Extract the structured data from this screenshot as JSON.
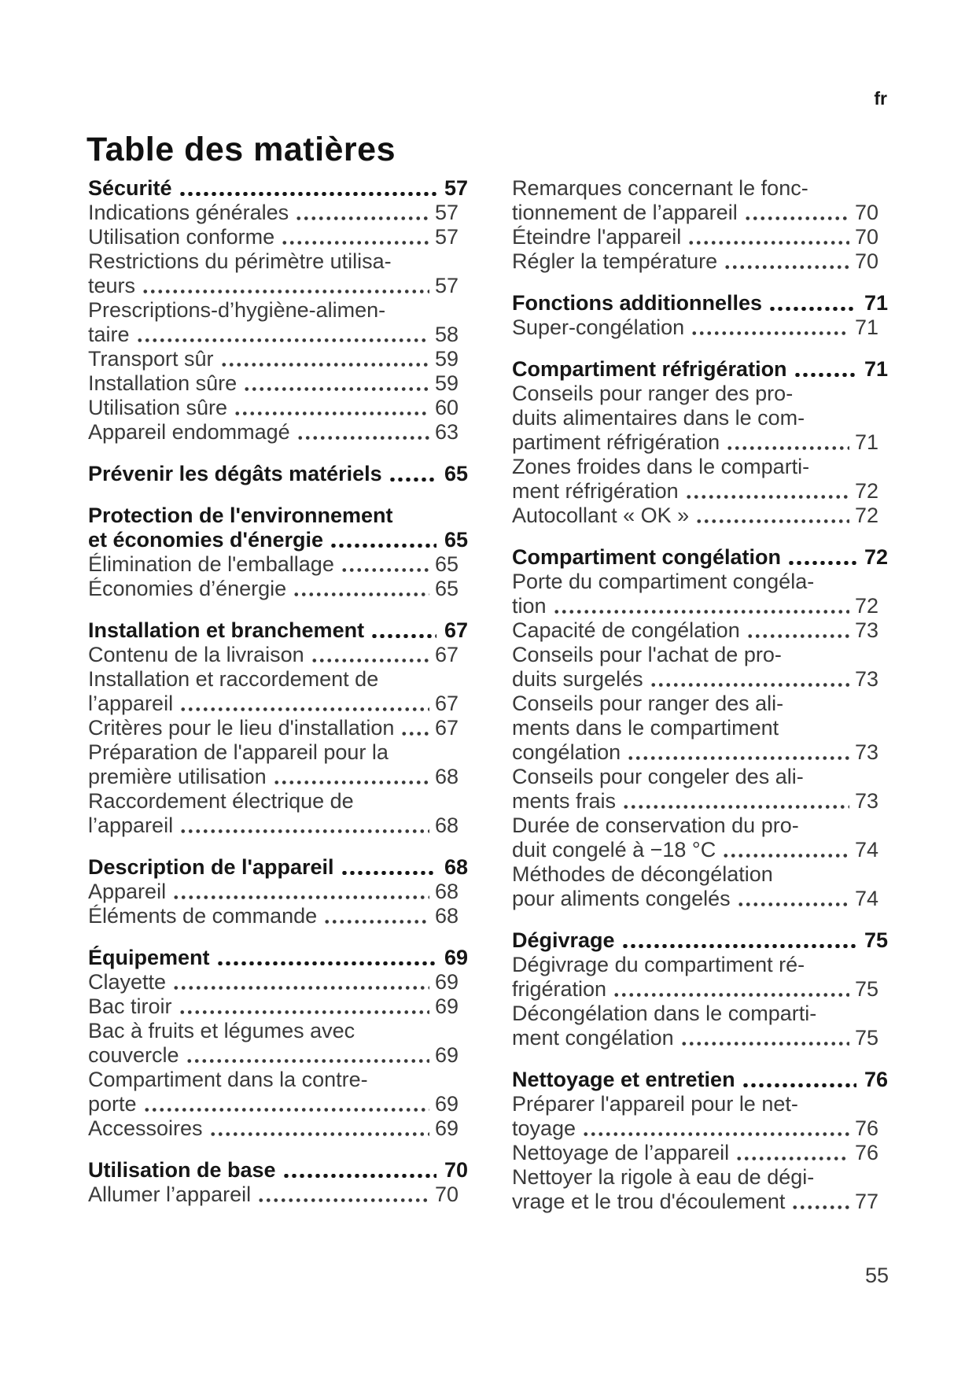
{
  "page": {
    "language_label": "fr",
    "title": "Table des matières",
    "page_number": "55"
  },
  "colors": {
    "background": "#ffffff",
    "body_text": "#3a3a3a",
    "heading_text": "#161616"
  },
  "toc": {
    "columns": [
      {
        "side": "left",
        "entries": [
          {
            "bold": true,
            "gap": false,
            "lines": [
              "Sécurité"
            ],
            "page": "57"
          },
          {
            "bold": false,
            "gap": false,
            "lines": [
              "Indications générales"
            ],
            "page": "57"
          },
          {
            "bold": false,
            "gap": false,
            "lines": [
              "Utilisation conforme"
            ],
            "page": "57"
          },
          {
            "bold": false,
            "gap": false,
            "lines": [
              "Restrictions du périmètre utilisa-",
              "teurs"
            ],
            "page": "57"
          },
          {
            "bold": false,
            "gap": false,
            "lines": [
              "Prescriptions-d’hygiène-alimen-",
              "taire"
            ],
            "page": "58"
          },
          {
            "bold": false,
            "gap": false,
            "lines": [
              "Transport sûr"
            ],
            "page": "59"
          },
          {
            "bold": false,
            "gap": false,
            "lines": [
              "Installation sûre"
            ],
            "page": "59"
          },
          {
            "bold": false,
            "gap": false,
            "lines": [
              "Utilisation sûre"
            ],
            "page": "60"
          },
          {
            "bold": false,
            "gap": false,
            "lines": [
              "Appareil endommagé"
            ],
            "page": "63"
          },
          {
            "bold": true,
            "gap": true,
            "lines": [
              "Prévenir les dégâts matériels"
            ],
            "page": "65"
          },
          {
            "bold": true,
            "gap": true,
            "lines": [
              "Protection de l'environnement",
              "et économies d'énergie"
            ],
            "page": "65"
          },
          {
            "bold": false,
            "gap": false,
            "lines": [
              "Élimination de l'emballage"
            ],
            "page": "65"
          },
          {
            "bold": false,
            "gap": false,
            "lines": [
              "Économies d’énergie"
            ],
            "page": "65"
          },
          {
            "bold": true,
            "gap": true,
            "lines": [
              "Installation et branchement"
            ],
            "page": "67"
          },
          {
            "bold": false,
            "gap": false,
            "lines": [
              "Contenu de la livraison"
            ],
            "page": "67"
          },
          {
            "bold": false,
            "gap": false,
            "lines": [
              "Installation et raccordement de",
              "l’appareil"
            ],
            "page": "67"
          },
          {
            "bold": false,
            "gap": false,
            "lines": [
              "Critères pour le lieu d'installation"
            ],
            "page": "67"
          },
          {
            "bold": false,
            "gap": false,
            "lines": [
              "Préparation de l'appareil pour la",
              "première utilisation"
            ],
            "page": "68"
          },
          {
            "bold": false,
            "gap": false,
            "lines": [
              "Raccordement électrique de",
              "l’appareil"
            ],
            "page": "68"
          },
          {
            "bold": true,
            "gap": true,
            "lines": [
              "Description de l'appareil"
            ],
            "page": "68"
          },
          {
            "bold": false,
            "gap": false,
            "lines": [
              "Appareil"
            ],
            "page": "68"
          },
          {
            "bold": false,
            "gap": false,
            "lines": [
              "Éléments de commande"
            ],
            "page": "68"
          },
          {
            "bold": true,
            "gap": true,
            "lines": [
              "Équipement"
            ],
            "page": "69"
          },
          {
            "bold": false,
            "gap": false,
            "lines": [
              "Clayette"
            ],
            "page": "69"
          },
          {
            "bold": false,
            "gap": false,
            "lines": [
              "Bac tiroir"
            ],
            "page": "69"
          },
          {
            "bold": false,
            "gap": false,
            "lines": [
              "Bac à fruits et légumes avec",
              "couvercle"
            ],
            "page": "69"
          },
          {
            "bold": false,
            "gap": false,
            "lines": [
              "Compartiment dans la contre-",
              "porte"
            ],
            "page": "69"
          },
          {
            "bold": false,
            "gap": false,
            "lines": [
              "Accessoires"
            ],
            "page": "69"
          },
          {
            "bold": true,
            "gap": true,
            "lines": [
              "Utilisation de base"
            ],
            "page": "70"
          },
          {
            "bold": false,
            "gap": false,
            "lines": [
              "Allumer l’appareil"
            ],
            "page": "70"
          }
        ]
      },
      {
        "side": "right",
        "entries": [
          {
            "bold": false,
            "gap": false,
            "lines": [
              "Remarques concernant le fonc-",
              "tionnement de l’appareil"
            ],
            "page": "70"
          },
          {
            "bold": false,
            "gap": false,
            "lines": [
              "Éteindre l'appareil"
            ],
            "page": "70"
          },
          {
            "bold": false,
            "gap": false,
            "lines": [
              "Régler la température"
            ],
            "page": "70"
          },
          {
            "bold": true,
            "gap": true,
            "lines": [
              "Fonctions additionnelles"
            ],
            "page": "71"
          },
          {
            "bold": false,
            "gap": false,
            "lines": [
              "Super-congélation"
            ],
            "page": "71"
          },
          {
            "bold": true,
            "gap": true,
            "lines": [
              "Compartiment réfrigération"
            ],
            "page": "71"
          },
          {
            "bold": false,
            "gap": false,
            "lines": [
              "Conseils pour ranger des pro-",
              "duits alimentaires dans le com-",
              "partiment réfrigération"
            ],
            "page": "71"
          },
          {
            "bold": false,
            "gap": false,
            "lines": [
              "Zones froides dans le comparti-",
              "ment réfrigération"
            ],
            "page": "72"
          },
          {
            "bold": false,
            "gap": false,
            "lines": [
              "Autocollant « OK »"
            ],
            "page": "72"
          },
          {
            "bold": true,
            "gap": true,
            "lines": [
              "Compartiment congélation"
            ],
            "page": "72"
          },
          {
            "bold": false,
            "gap": false,
            "lines": [
              "Porte du compartiment congéla-",
              "tion"
            ],
            "page": "72"
          },
          {
            "bold": false,
            "gap": false,
            "lines": [
              "Capacité de congélation"
            ],
            "page": "73"
          },
          {
            "bold": false,
            "gap": false,
            "lines": [
              "Conseils pour l'achat de pro-",
              "duits surgelés"
            ],
            "page": "73"
          },
          {
            "bold": false,
            "gap": false,
            "lines": [
              "Conseils pour ranger des ali-",
              "ments dans le compartiment",
              "congélation"
            ],
            "page": "73"
          },
          {
            "bold": false,
            "gap": false,
            "lines": [
              "Conseils pour congeler des ali-",
              "ments frais"
            ],
            "page": "73"
          },
          {
            "bold": false,
            "gap": false,
            "lines": [
              "Durée de conservation du pro-",
              "duit congelé à −18 °C"
            ],
            "page": "74"
          },
          {
            "bold": false,
            "gap": false,
            "lines": [
              "Méthodes de décongélation",
              "pour aliments congelés"
            ],
            "page": "74"
          },
          {
            "bold": true,
            "gap": true,
            "lines": [
              "Dégivrage"
            ],
            "page": "75"
          },
          {
            "bold": false,
            "gap": false,
            "lines": [
              "Dégivrage du compartiment ré-",
              "frigération"
            ],
            "page": "75"
          },
          {
            "bold": false,
            "gap": false,
            "lines": [
              "Décongélation dans le comparti-",
              "ment congélation"
            ],
            "page": "75"
          },
          {
            "bold": true,
            "gap": true,
            "lines": [
              "Nettoyage et entretien"
            ],
            "page": "76"
          },
          {
            "bold": false,
            "gap": false,
            "lines": [
              "Préparer l'appareil pour le net-",
              "toyage"
            ],
            "page": "76"
          },
          {
            "bold": false,
            "gap": false,
            "lines": [
              "Nettoyage de l’appareil"
            ],
            "page": "76"
          },
          {
            "bold": false,
            "gap": false,
            "lines": [
              "Nettoyer la rigole à eau de dégi-",
              "vrage et le trou d'écoulement"
            ],
            "page": "77"
          }
        ]
      }
    ]
  }
}
